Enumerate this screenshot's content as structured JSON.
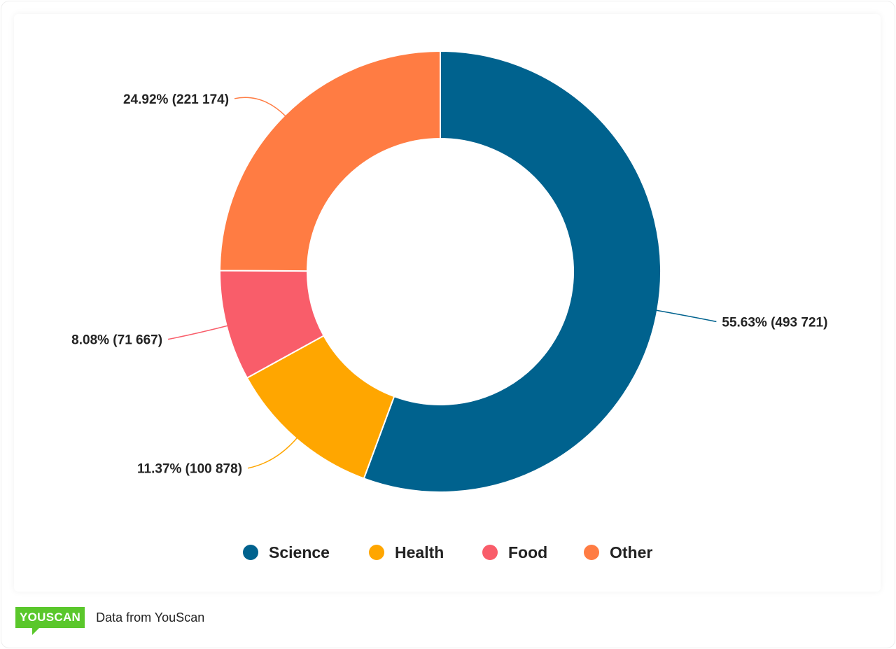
{
  "chart_data": {
    "type": "pie",
    "donut": true,
    "categories": [
      "Science",
      "Health",
      "Food",
      "Other"
    ],
    "values": [
      493721,
      100878,
      71667,
      221174
    ],
    "percentages": [
      55.63,
      11.37,
      8.08,
      24.92
    ],
    "labels": [
      "55.63% (493 721)",
      "11.37% (100 878)",
      "8.08% (71 667)",
      "24.92% (221 174)"
    ],
    "colors": [
      "#00628e",
      "#ffa600",
      "#f95d6a",
      "#ff7c43"
    ],
    "legend_position": "bottom"
  },
  "footer": {
    "logo_text": "YOUSCAN",
    "source": "Data from YouScan"
  }
}
